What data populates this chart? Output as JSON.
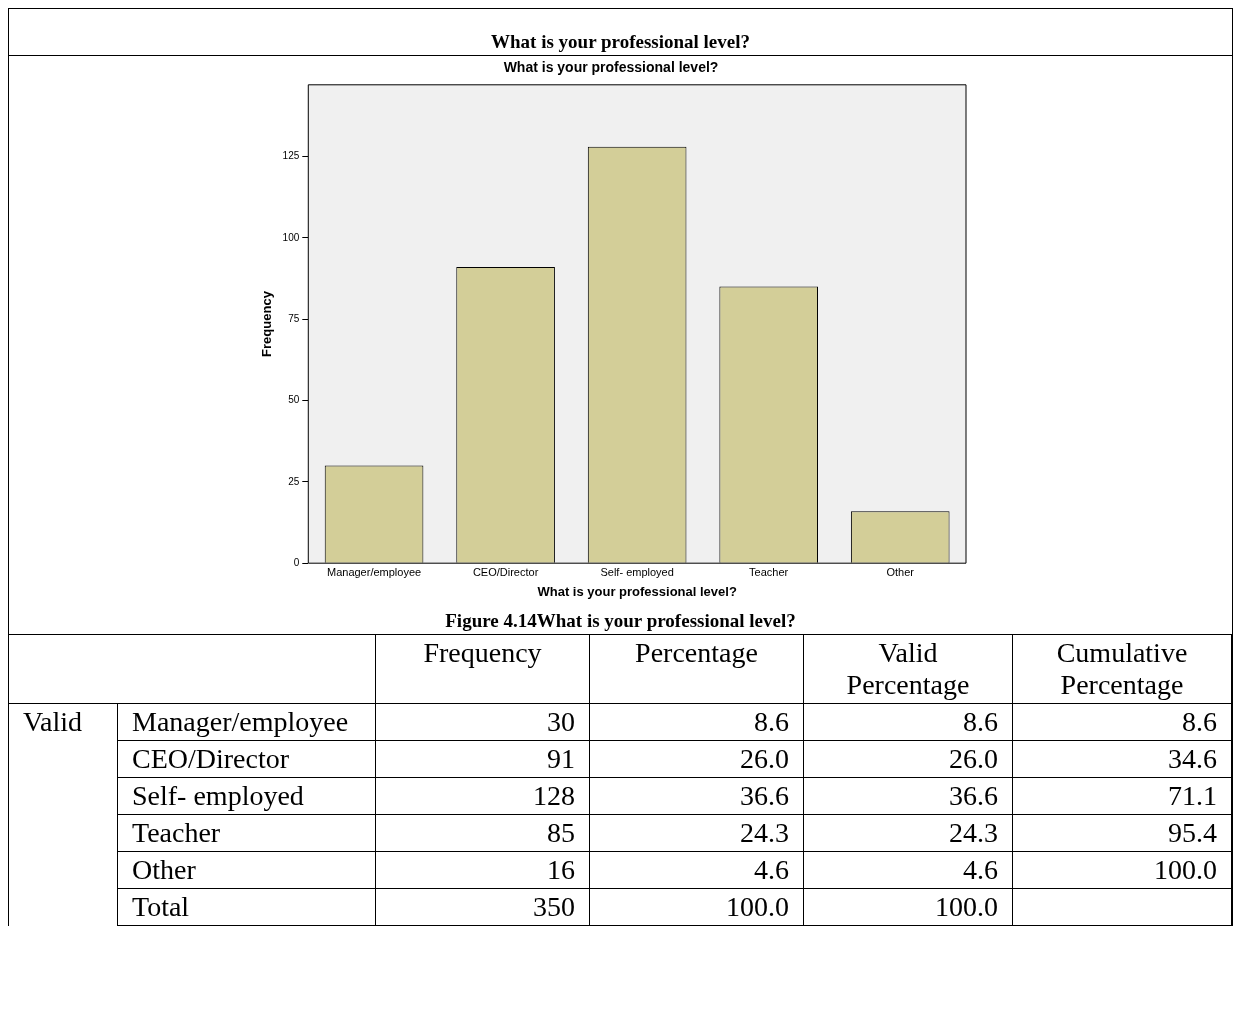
{
  "chart_data": [
    {
      "type": "bar",
      "title": "What is your professional level?",
      "xlabel": "What is your professional level?",
      "ylabel": "Frequency",
      "categories": [
        "Manager/employee",
        "CEO/Director",
        "Self- employed",
        "Teacher",
        "Other"
      ],
      "values": [
        30,
        91,
        128,
        85,
        16
      ],
      "color": "#d3ce98",
      "ylim": [
        0,
        147
      ],
      "yticks": [
        0,
        25,
        50,
        75,
        100,
        125
      ],
      "annotations": [
        "What is your professional level?",
        "Figure 4.14What is your professional level?"
      ]
    },
    {
      "type": "other",
      "annotations": [
        "Valid"
      ],
      "data_labels": true,
      "categories": [
        "Manager/employee",
        "CEO/Director",
        "Self- employed",
        "Teacher",
        "Other",
        "Total"
      ],
      "series": [
        {
          "name": "Frequency",
          "values": [
            30,
            91,
            128,
            85,
            16,
            350
          ]
        },
        {
          "name": "Percentage",
          "values": [
            8.6,
            26.0,
            36.6,
            24.3,
            4.6,
            100.0
          ],
          "value_labels": [
            "8.6",
            "26.0",
            "36.6",
            "24.3",
            "4.6",
            "100.0"
          ]
        },
        {
          "name": "Valid Percentage",
          "values": [
            8.6,
            26.0,
            36.6,
            24.3,
            4.6,
            100.0
          ],
          "value_labels": [
            "8.6",
            "26.0",
            "36.6",
            "24.3",
            "4.6",
            "100.0"
          ]
        },
        {
          "name": "Cumulative Percentage",
          "values": [
            8.6,
            34.6,
            71.1,
            95.4,
            100.0,
            null
          ],
          "value_labels": [
            "8.6",
            "34.6",
            "71.1",
            "95.4",
            "100.0",
            null
          ]
        }
      ]
    }
  ]
}
